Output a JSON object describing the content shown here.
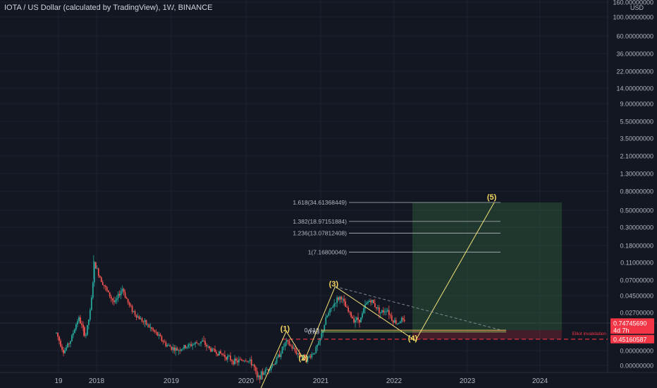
{
  "header": {
    "title": "IOTA / US Dollar (calculated by TradingView), 1W, BINANCE"
  },
  "chart_data": {
    "type": "candlestick",
    "currency": "USD",
    "y_scale": "log",
    "y_ticks": [
      "160.00000000",
      "100.00000000",
      "60.00000000",
      "36.00000000",
      "22.00000000",
      "14.00000000",
      "9.00000000",
      "5.50000000",
      "3.50000000",
      "2.10000000",
      "1.30000000",
      "0.80000000",
      "0.50000000",
      "0.30000000",
      "0.18000000",
      "0.11000000",
      "0.07000000",
      "0.04500000",
      "0.02700000",
      "0.00000000",
      "0.00000000"
    ],
    "x_ticks": [
      "19",
      "2018",
      "2019",
      "2020",
      "2021",
      "2022",
      "2023",
      "2024"
    ],
    "price_labels": {
      "current": "0.74745690",
      "countdown": "4d 7h",
      "invalidation": "0.45160587"
    },
    "fib_levels": [
      {
        "label": "1.618(34.61368449)",
        "value": 34.61
      },
      {
        "label": "1.382(18.97151884)",
        "value": 18.97
      },
      {
        "label": "1.236(13.07812408)",
        "value": 13.08
      },
      {
        "label": "1(7.16800040)",
        "value": 7.168
      }
    ],
    "fib_retrace": [
      {
        "label": "0.618",
        "value": 0.6
      },
      {
        "label": "0.65",
        "value": 0.57
      }
    ],
    "wave_labels": [
      {
        "label": "(1)",
        "date": "2020-08",
        "value": 0.58
      },
      {
        "label": "(2)",
        "date": "2020-11",
        "value": 0.23
      },
      {
        "label": "(3)",
        "date": "2021-04",
        "value": 2.4
      },
      {
        "label": "(4)",
        "date": "2022-05",
        "value": 0.43
      },
      {
        "label": "(5)",
        "date": "2023-06",
        "value": 38.0
      }
    ],
    "invalidation_text": "Elliot invalidation"
  }
}
